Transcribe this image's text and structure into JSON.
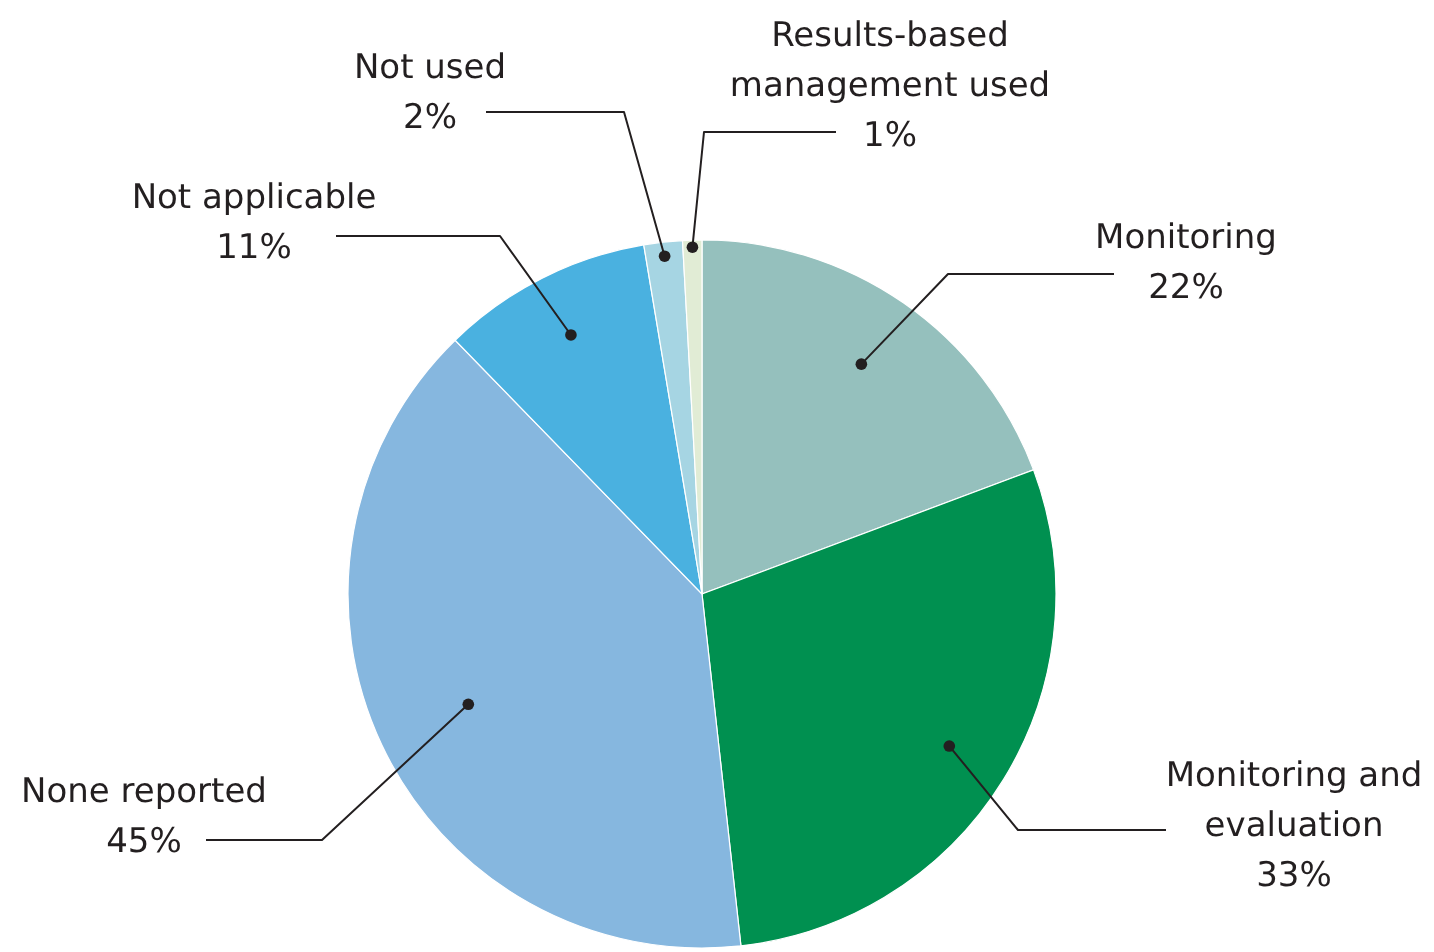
{
  "chart_data": {
    "type": "pie",
    "categories": [
      "Monitoring",
      "Monitoring and evaluation",
      "None reported",
      "Not applicable",
      "Not used",
      "Results-based management used"
    ],
    "values": [
      22,
      33,
      45,
      11,
      2,
      1
    ],
    "colors": [
      "#95c0bd",
      "#009050",
      "#86b7df",
      "#4ab1e0",
      "#a6d5e3",
      "#e1ecd5"
    ],
    "value_labels": [
      "22%",
      "33%",
      "45%",
      "11%",
      "2%",
      "1%"
    ]
  }
}
